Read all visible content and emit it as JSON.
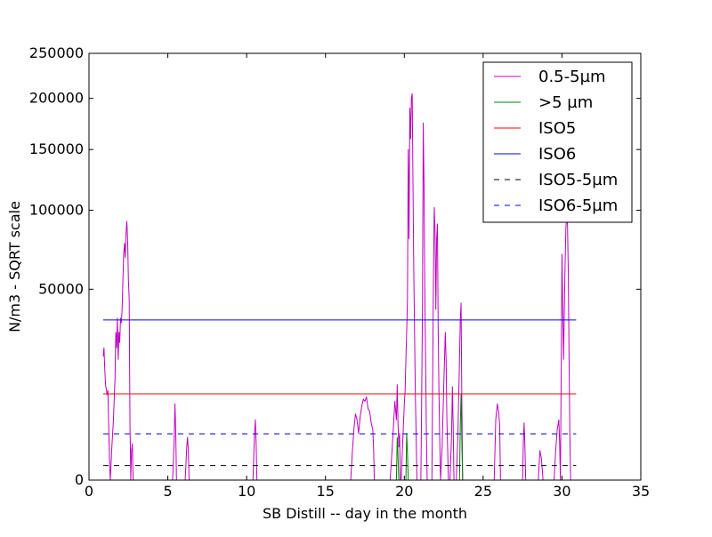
{
  "chart_data": {
    "type": "line",
    "title": "",
    "xlabel": "SB Distill -- day in the month",
    "ylabel": "N/m3 - SQRT scale",
    "xlim": [
      0,
      35
    ],
    "ylim": [
      0,
      250000
    ],
    "y_scale": "sqrt",
    "grid": false,
    "legend_position": "top-right",
    "x_ticks": [
      0,
      5,
      10,
      15,
      20,
      25,
      30,
      35
    ],
    "y_ticks": [
      0,
      50000,
      100000,
      150000,
      200000,
      250000
    ],
    "series": [
      {
        "name": "0.5-5µm",
        "color": "#bf00bf",
        "style": "solid",
        "points": [
          [
            0.9,
            21000
          ],
          [
            0.95,
            24000
          ],
          [
            1.0,
            17000
          ],
          [
            1.05,
            12500
          ],
          [
            1.15,
            10000
          ],
          [
            1.2,
            11000
          ],
          [
            1.25,
            4000
          ],
          [
            1.3,
            600
          ],
          [
            1.35,
            0
          ],
          [
            1.45,
            1500
          ],
          [
            1.55,
            5000
          ],
          [
            1.6,
            9000
          ],
          [
            1.65,
            14000
          ],
          [
            1.7,
            30000
          ],
          [
            1.75,
            24000
          ],
          [
            1.8,
            36000
          ],
          [
            1.85,
            20000
          ],
          [
            1.9,
            30000
          ],
          [
            1.95,
            26000
          ],
          [
            2.0,
            36000
          ],
          [
            2.05,
            34000
          ],
          [
            2.1,
            40000
          ],
          [
            2.15,
            55000
          ],
          [
            2.2,
            70000
          ],
          [
            2.25,
            77000
          ],
          [
            2.3,
            68000
          ],
          [
            2.35,
            84000
          ],
          [
            2.4,
            92000
          ],
          [
            2.45,
            80000
          ],
          [
            2.5,
            55000
          ],
          [
            2.55,
            45000
          ],
          [
            2.6,
            4500
          ],
          [
            2.65,
            0
          ],
          [
            2.7,
            1200
          ],
          [
            2.75,
            1800
          ],
          [
            2.8,
            0
          ],
          [
            2.9,
            0
          ],
          [
            5.3,
            0
          ],
          [
            5.4,
            2000
          ],
          [
            5.45,
            8000
          ],
          [
            5.5,
            3500
          ],
          [
            5.55,
            0
          ],
          [
            6.1,
            0
          ],
          [
            6.2,
            1500
          ],
          [
            6.25,
            2500
          ],
          [
            6.3,
            1200
          ],
          [
            6.35,
            0
          ],
          [
            10.4,
            0
          ],
          [
            10.5,
            3000
          ],
          [
            10.55,
            5000
          ],
          [
            10.6,
            2000
          ],
          [
            10.65,
            0
          ],
          [
            16.6,
            0
          ],
          [
            16.7,
            1000
          ],
          [
            16.8,
            3500
          ],
          [
            16.9,
            6000
          ],
          [
            17.0,
            5000
          ],
          [
            17.1,
            3000
          ],
          [
            17.2,
            5500
          ],
          [
            17.3,
            7500
          ],
          [
            17.4,
            9000
          ],
          [
            17.5,
            8500
          ],
          [
            17.6,
            9500
          ],
          [
            17.7,
            7000
          ],
          [
            17.8,
            6500
          ],
          [
            17.9,
            4500
          ],
          [
            18.0,
            3500
          ],
          [
            18.05,
            1500
          ],
          [
            18.1,
            0
          ],
          [
            19.1,
            0
          ],
          [
            19.2,
            800
          ],
          [
            19.3,
            3500
          ],
          [
            19.4,
            8500
          ],
          [
            19.5,
            5000
          ],
          [
            19.55,
            12500
          ],
          [
            19.6,
            4500
          ],
          [
            19.65,
            1500
          ],
          [
            19.7,
            3000
          ],
          [
            19.75,
            0
          ],
          [
            19.8,
            0
          ],
          [
            19.9,
            2000
          ],
          [
            20.0,
            8000
          ],
          [
            20.05,
            11000
          ],
          [
            20.1,
            20000
          ],
          [
            20.15,
            30000
          ],
          [
            20.2,
            45000
          ],
          [
            20.25,
            150000
          ],
          [
            20.3,
            80000
          ],
          [
            20.35,
            190000
          ],
          [
            20.4,
            160000
          ],
          [
            20.45,
            200000
          ],
          [
            20.5,
            205000
          ],
          [
            20.55,
            120000
          ],
          [
            20.6,
            60000
          ],
          [
            20.65,
            30000
          ],
          [
            20.7,
            10000
          ],
          [
            20.75,
            3000
          ],
          [
            20.8,
            0
          ],
          [
            20.9,
            0
          ],
          [
            21.05,
            0
          ],
          [
            21.1,
            9000
          ],
          [
            21.15,
            40000
          ],
          [
            21.2,
            175000
          ],
          [
            21.25,
            120000
          ],
          [
            21.3,
            50000
          ],
          [
            21.35,
            20000
          ],
          [
            21.4,
            3000
          ],
          [
            21.45,
            0
          ],
          [
            21.75,
            0
          ],
          [
            21.8,
            15000
          ],
          [
            21.85,
            60000
          ],
          [
            21.9,
            102000
          ],
          [
            21.95,
            85000
          ],
          [
            22.0,
            40000
          ],
          [
            22.05,
            80000
          ],
          [
            22.1,
            90000
          ],
          [
            22.15,
            30000
          ],
          [
            22.2,
            10000
          ],
          [
            22.25,
            2000
          ],
          [
            22.3,
            0
          ],
          [
            22.4,
            1500
          ],
          [
            22.5,
            12000
          ],
          [
            22.6,
            30000
          ],
          [
            22.65,
            20000
          ],
          [
            22.7,
            5000
          ],
          [
            22.8,
            0
          ],
          [
            22.9,
            0
          ],
          [
            23.0,
            3000
          ],
          [
            23.05,
            12000
          ],
          [
            23.1,
            4000
          ],
          [
            23.15,
            0
          ],
          [
            23.3,
            0
          ],
          [
            23.4,
            3000
          ],
          [
            23.5,
            20000
          ],
          [
            23.55,
            35000
          ],
          [
            23.6,
            43000
          ],
          [
            23.65,
            8000
          ],
          [
            23.7,
            0
          ],
          [
            23.8,
            0
          ],
          [
            25.7,
            0
          ],
          [
            25.8,
            5000
          ],
          [
            25.9,
            8000
          ],
          [
            26.0,
            6000
          ],
          [
            26.05,
            4000
          ],
          [
            26.1,
            0
          ],
          [
            27.5,
            0
          ],
          [
            27.55,
            2000
          ],
          [
            27.6,
            4500
          ],
          [
            27.65,
            1500
          ],
          [
            27.7,
            0
          ],
          [
            28.5,
            0
          ],
          [
            28.6,
            1200
          ],
          [
            28.7,
            600
          ],
          [
            28.8,
            0
          ],
          [
            29.5,
            0
          ],
          [
            29.6,
            1200
          ],
          [
            29.7,
            3500
          ],
          [
            29.8,
            5000
          ],
          [
            29.85,
            2000
          ],
          [
            29.9,
            0
          ],
          [
            29.95,
            15000
          ],
          [
            30.0,
            70000
          ],
          [
            30.05,
            40000
          ],
          [
            30.1,
            20000
          ],
          [
            30.15,
            40000
          ],
          [
            30.2,
            65000
          ],
          [
            30.25,
            88000
          ],
          [
            30.3,
            95000
          ],
          [
            30.35,
            90000
          ],
          [
            30.4,
            60000
          ],
          [
            30.45,
            20000
          ],
          [
            30.5,
            3000
          ],
          [
            30.55,
            0
          ],
          [
            30.9,
            0
          ]
        ]
      },
      {
        "name": ">5 µm",
        "color": "#008000",
        "style": "solid",
        "points": [
          [
            0.9,
            0
          ],
          [
            19.5,
            0
          ],
          [
            19.55,
            2500
          ],
          [
            19.6,
            800
          ],
          [
            19.65,
            0
          ],
          [
            20.1,
            0
          ],
          [
            20.15,
            3000
          ],
          [
            20.2,
            1000
          ],
          [
            20.25,
            0
          ],
          [
            23.5,
            0
          ],
          [
            23.55,
            4000
          ],
          [
            23.6,
            10000
          ],
          [
            23.65,
            2000
          ],
          [
            23.7,
            0
          ],
          [
            30.9,
            0
          ]
        ]
      },
      {
        "name": "ISO5",
        "color": "#ff0000",
        "style": "solid",
        "points": [
          [
            0.9,
            10200
          ],
          [
            30.9,
            10200
          ]
        ]
      },
      {
        "name": "ISO6",
        "color": "#0000ff",
        "style": "solid",
        "points": [
          [
            0.9,
            35200
          ],
          [
            30.9,
            35200
          ]
        ]
      },
      {
        "name": "ISO5-5µm",
        "color": "#000000",
        "style": "dashed",
        "points": [
          [
            0.9,
            290
          ],
          [
            30.9,
            290
          ]
        ]
      },
      {
        "name": "ISO6-5µm",
        "color": "#0000ff",
        "style": "dashed",
        "points": [
          [
            0.9,
            2930
          ],
          [
            30.9,
            2930
          ]
        ]
      }
    ]
  }
}
